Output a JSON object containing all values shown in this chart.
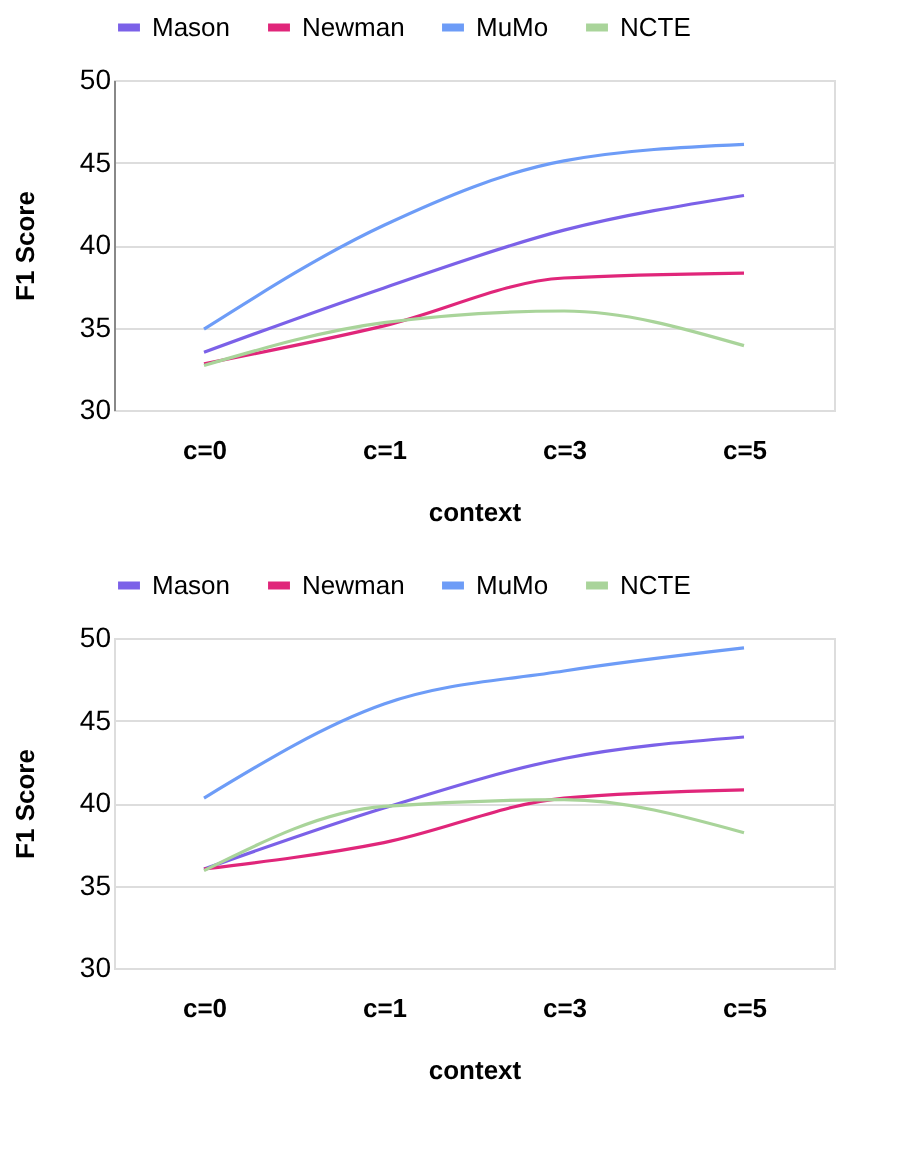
{
  "chart_data": [
    {
      "type": "line",
      "xlabel": "context",
      "ylabel": "F1 Score",
      "categories": [
        "c=0",
        "c=1",
        "c=3",
        "c=5"
      ],
      "ylim": [
        30,
        50
      ],
      "yticks": [
        30,
        35,
        40,
        45,
        50
      ],
      "grid": "y",
      "legend": "top",
      "marker": "none",
      "line_style": "solid",
      "series": [
        {
          "name": "Mason",
          "color": "#7b61e8",
          "values": [
            33.5,
            37.4,
            40.9,
            43.0
          ]
        },
        {
          "name": "Newman",
          "color": "#e0267a",
          "values": [
            32.8,
            35.1,
            38.0,
            38.3
          ]
        },
        {
          "name": "MuMo",
          "color": "#6d9cf7",
          "values": [
            34.9,
            41.2,
            45.1,
            46.1
          ]
        },
        {
          "name": "NCTE",
          "color": "#a9d49a",
          "values": [
            32.7,
            35.3,
            36.0,
            33.9
          ]
        }
      ]
    },
    {
      "type": "line",
      "xlabel": "context",
      "ylabel": "F1 Score",
      "categories": [
        "c=0",
        "c=1",
        "c=3",
        "c=5"
      ],
      "ylim": [
        30,
        50
      ],
      "yticks": [
        30,
        35,
        40,
        45,
        50
      ],
      "grid": "y",
      "legend": "top",
      "marker": "none",
      "line_style": "solid",
      "series": [
        {
          "name": "Mason",
          "color": "#7b61e8",
          "values": [
            36.0,
            39.7,
            42.7,
            44.0
          ]
        },
        {
          "name": "Newman",
          "color": "#e0267a",
          "values": [
            36.0,
            37.6,
            40.3,
            40.8
          ]
        },
        {
          "name": "MuMo",
          "color": "#6d9cf7",
          "values": [
            40.3,
            46.0,
            48.0,
            49.4
          ]
        },
        {
          "name": "NCTE",
          "color": "#a9d49a",
          "values": [
            35.9,
            39.8,
            40.2,
            38.2
          ]
        }
      ]
    }
  ]
}
